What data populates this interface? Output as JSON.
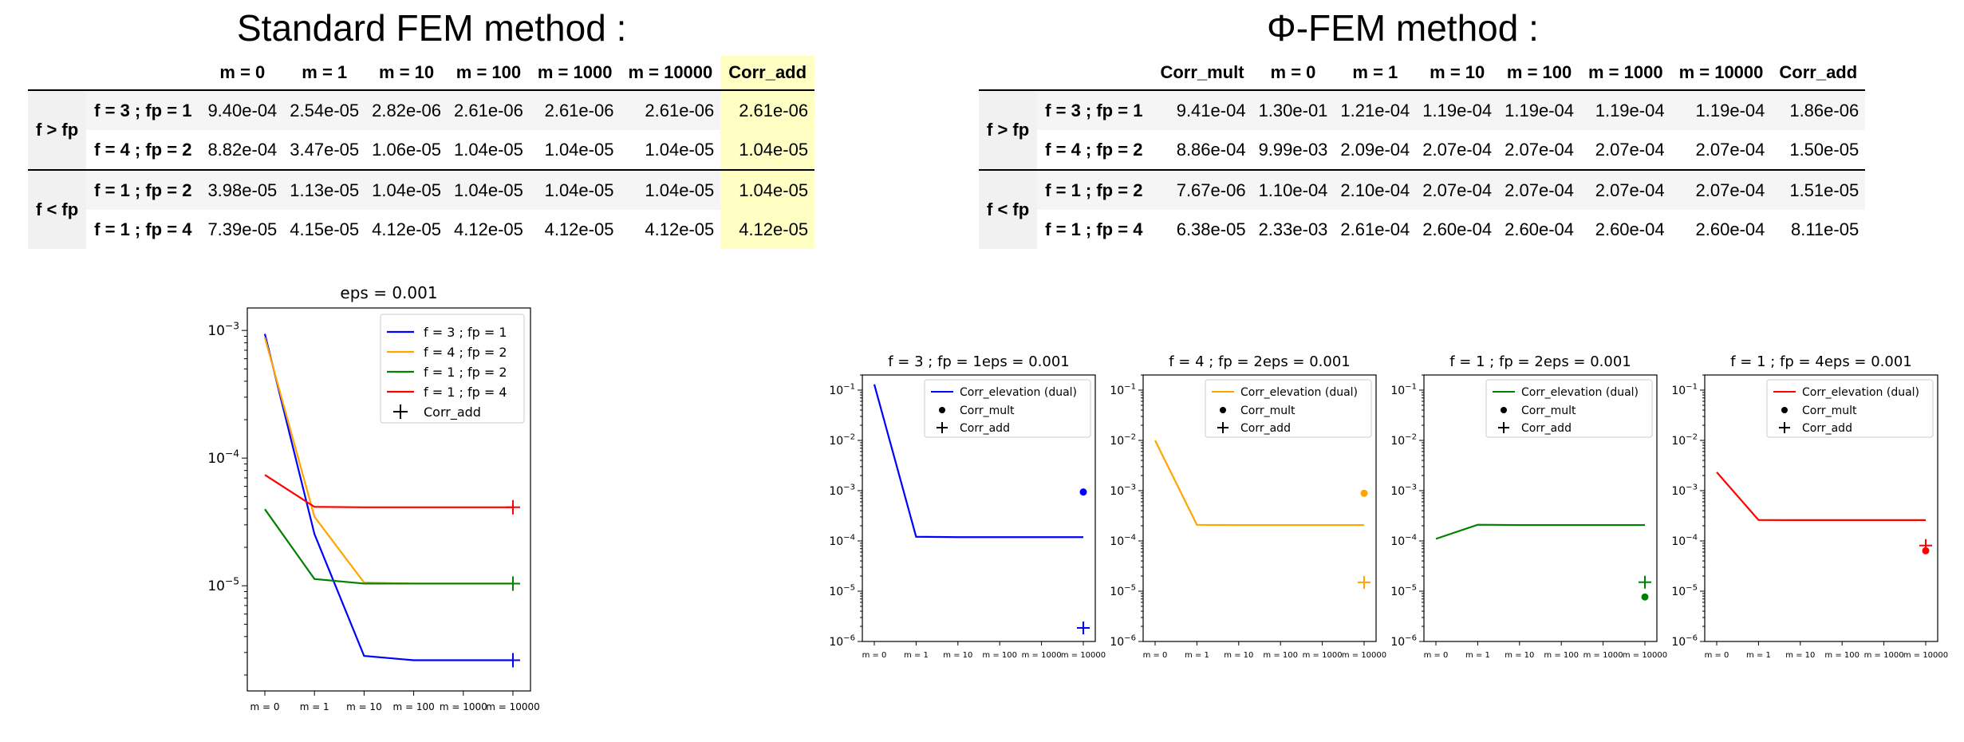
{
  "std_table": {
    "title": "Standard FEM method :",
    "columns": [
      "m = 0",
      "m = 1",
      "m = 10",
      "m = 100",
      "m = 1000",
      "m = 10000",
      "Corr_add"
    ],
    "groups": [
      {
        "label": "f > fp",
        "rows": [
          {
            "label": "f = 3 ; fp = 1",
            "values": [
              "9.40e-04",
              "2.54e-05",
              "2.82e-06",
              "2.61e-06",
              "2.61e-06",
              "2.61e-06",
              "2.61e-06"
            ]
          },
          {
            "label": "f = 4 ; fp = 2",
            "values": [
              "8.82e-04",
              "3.47e-05",
              "1.06e-05",
              "1.04e-05",
              "1.04e-05",
              "1.04e-05",
              "1.04e-05"
            ]
          }
        ]
      },
      {
        "label": "f < fp",
        "rows": [
          {
            "label": "f = 1 ; fp = 2",
            "values": [
              "3.98e-05",
              "1.13e-05",
              "1.04e-05",
              "1.04e-05",
              "1.04e-05",
              "1.04e-05",
              "1.04e-05"
            ]
          },
          {
            "label": "f = 1 ; fp = 4",
            "values": [
              "7.39e-05",
              "4.15e-05",
              "4.12e-05",
              "4.12e-05",
              "4.12e-05",
              "4.12e-05",
              "4.12e-05"
            ]
          }
        ]
      }
    ],
    "highlight_column": "Corr_add",
    "highlight_color": "#ffffc4"
  },
  "phi_table": {
    "title": "Φ-FEM method :",
    "columns": [
      "Corr_mult",
      "m = 0",
      "m = 1",
      "m = 10",
      "m = 100",
      "m = 1000",
      "m = 10000",
      "Corr_add"
    ],
    "groups": [
      {
        "label": "f > fp",
        "rows": [
          {
            "label": "f = 3 ; fp = 1",
            "values": [
              "9.41e-04",
              "1.30e-01",
              "1.21e-04",
              "1.19e-04",
              "1.19e-04",
              "1.19e-04",
              "1.19e-04",
              "1.86e-06"
            ]
          },
          {
            "label": "f = 4 ; fp = 2",
            "values": [
              "8.86e-04",
              "9.99e-03",
              "2.09e-04",
              "2.07e-04",
              "2.07e-04",
              "2.07e-04",
              "2.07e-04",
              "1.50e-05"
            ]
          }
        ]
      },
      {
        "label": "f < fp",
        "rows": [
          {
            "label": "f = 1 ; fp = 2",
            "values": [
              "7.67e-06",
              "1.10e-04",
              "2.10e-04",
              "2.07e-04",
              "2.07e-04",
              "2.07e-04",
              "2.07e-04",
              "1.51e-05"
            ]
          },
          {
            "label": "f = 1 ; fp = 4",
            "values": [
              "6.38e-05",
              "2.33e-03",
              "2.61e-04",
              "2.60e-04",
              "2.60e-04",
              "2.60e-04",
              "2.60e-04",
              "8.11e-05"
            ]
          }
        ]
      }
    ]
  },
  "chart_data": [
    {
      "type": "line",
      "title": "eps = 0.001",
      "categories": [
        "m = 0",
        "m = 1",
        "m = 10",
        "m = 100",
        "m = 1000",
        "m = 10000"
      ],
      "yscale": "log",
      "ylim": [
        1.5e-06,
        0.0015
      ],
      "yticks": [
        1e-05,
        0.0001,
        0.001
      ],
      "ytick_labels": [
        [
          "10",
          "−5"
        ],
        [
          "10",
          "−4"
        ],
        [
          "10",
          "−3"
        ]
      ],
      "legend_position": "top-right",
      "series": [
        {
          "name": "f = 3 ; fp = 1",
          "color": "#0000ff",
          "values": [
            0.00094,
            2.54e-05,
            2.82e-06,
            2.61e-06,
            2.61e-06,
            2.61e-06
          ],
          "corr_add": 2.61e-06
        },
        {
          "name": "f = 4 ; fp = 2",
          "color": "#ffa500",
          "values": [
            0.000882,
            3.47e-05,
            1.06e-05,
            1.04e-05,
            1.04e-05,
            1.04e-05
          ],
          "corr_add": 1.04e-05
        },
        {
          "name": "f = 1 ; fp = 2",
          "color": "#008000",
          "values": [
            3.98e-05,
            1.13e-05,
            1.04e-05,
            1.04e-05,
            1.04e-05,
            1.04e-05
          ],
          "corr_add": 1.04e-05
        },
        {
          "name": "f = 1 ; fp = 4",
          "color": "#ff0000",
          "values": [
            7.39e-05,
            4.15e-05,
            4.12e-05,
            4.12e-05,
            4.12e-05,
            4.12e-05
          ],
          "corr_add": 4.12e-05
        }
      ],
      "marker_legend": "Corr_add"
    },
    {
      "type": "line",
      "title": "f = 3 ; fp = 1eps = 0.001",
      "color": "#0000ff",
      "yscale": "log",
      "ylim": [
        1e-06,
        0.2
      ],
      "categories": [
        "m = 0",
        "m = 1",
        "m = 10",
        "m = 100",
        "m = 1000",
        "m = 10000"
      ],
      "yticks": [
        1e-06,
        1e-05,
        0.0001,
        0.001,
        0.01,
        0.1
      ],
      "ytick_labels": [
        [
          "10",
          "−6"
        ],
        [
          "10",
          "−5"
        ],
        [
          "10",
          "−4"
        ],
        [
          "10",
          "−3"
        ],
        [
          "10",
          "−2"
        ],
        [
          "10",
          "−1"
        ]
      ],
      "legend": [
        "Corr_elevation (dual)",
        "Corr_mult",
        "Corr_add"
      ],
      "legend_position": "top-right",
      "values": [
        0.13,
        0.000121,
        0.000119,
        0.000119,
        0.000119,
        0.000119
      ],
      "corr_mult": 0.000941,
      "corr_add": 1.86e-06
    },
    {
      "type": "line",
      "title": "f = 4 ; fp = 2eps = 0.001",
      "color": "#ffa500",
      "yscale": "log",
      "ylim": [
        1e-06,
        0.2
      ],
      "categories": [
        "m = 0",
        "m = 1",
        "m = 10",
        "m = 100",
        "m = 1000",
        "m = 10000"
      ],
      "yticks": [
        1e-06,
        1e-05,
        0.0001,
        0.001,
        0.01,
        0.1
      ],
      "ytick_labels": [
        [
          "10",
          "−6"
        ],
        [
          "10",
          "−5"
        ],
        [
          "10",
          "−4"
        ],
        [
          "10",
          "−3"
        ],
        [
          "10",
          "−2"
        ],
        [
          "10",
          "−1"
        ]
      ],
      "legend": [
        "Corr_elevation (dual)",
        "Corr_mult",
        "Corr_add"
      ],
      "legend_position": "top-right",
      "values": [
        0.00999,
        0.000209,
        0.000207,
        0.000207,
        0.000207,
        0.000207
      ],
      "corr_mult": 0.000886,
      "corr_add": 1.5e-05
    },
    {
      "type": "line",
      "title": "f = 1 ; fp = 2eps = 0.001",
      "color": "#008000",
      "yscale": "log",
      "ylim": [
        1e-06,
        0.2
      ],
      "categories": [
        "m = 0",
        "m = 1",
        "m = 10",
        "m = 100",
        "m = 1000",
        "m = 10000"
      ],
      "yticks": [
        1e-06,
        1e-05,
        0.0001,
        0.001,
        0.01,
        0.1
      ],
      "ytick_labels": [
        [
          "10",
          "−6"
        ],
        [
          "10",
          "−5"
        ],
        [
          "10",
          "−4"
        ],
        [
          "10",
          "−3"
        ],
        [
          "10",
          "−2"
        ],
        [
          "10",
          "−1"
        ]
      ],
      "legend": [
        "Corr_elevation (dual)",
        "Corr_mult",
        "Corr_add"
      ],
      "legend_position": "top-right",
      "values": [
        0.00011,
        0.00021,
        0.000207,
        0.000207,
        0.000207,
        0.000207
      ],
      "corr_mult": 7.67e-06,
      "corr_add": 1.51e-05
    },
    {
      "type": "line",
      "title": "f = 1 ; fp = 4eps = 0.001",
      "color": "#ff0000",
      "yscale": "log",
      "ylim": [
        1e-06,
        0.2
      ],
      "categories": [
        "m = 0",
        "m = 1",
        "m = 10",
        "m = 100",
        "m = 1000",
        "m = 10000"
      ],
      "yticks": [
        1e-06,
        1e-05,
        0.0001,
        0.001,
        0.01,
        0.1
      ],
      "ytick_labels": [
        [
          "10",
          "−6"
        ],
        [
          "10",
          "−5"
        ],
        [
          "10",
          "−4"
        ],
        [
          "10",
          "−3"
        ],
        [
          "10",
          "−2"
        ],
        [
          "10",
          "−1"
        ]
      ],
      "legend": [
        "Corr_elevation (dual)",
        "Corr_mult",
        "Corr_add"
      ],
      "legend_position": "top-right",
      "values": [
        0.00233,
        0.000261,
        0.00026,
        0.00026,
        0.00026,
        0.00026
      ],
      "corr_mult": 6.38e-05,
      "corr_add": 8.11e-05
    }
  ]
}
